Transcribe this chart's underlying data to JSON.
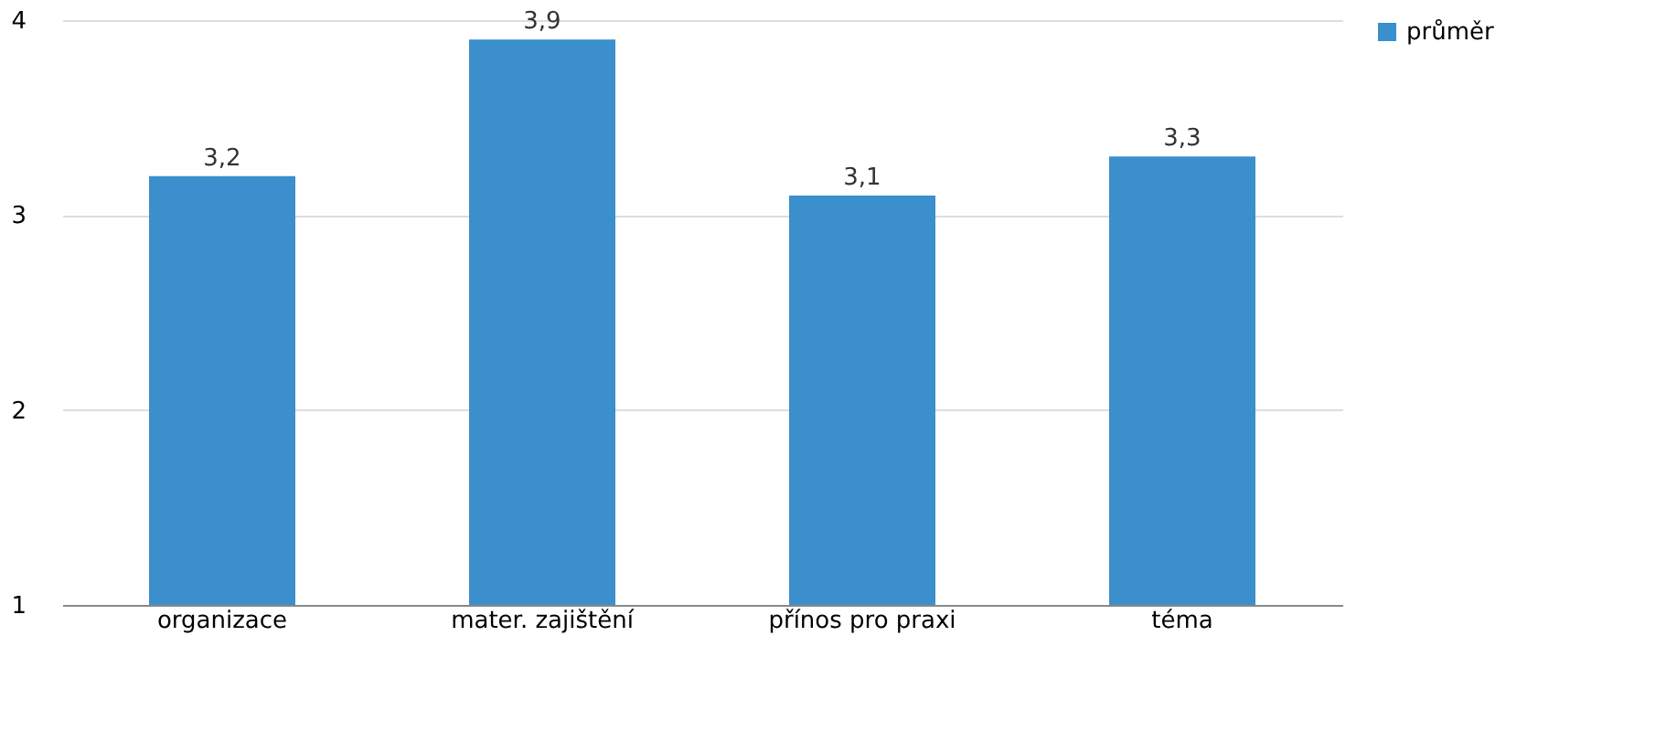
{
  "chart_data": {
    "type": "bar",
    "categories": [
      "organizace",
      "mater. zajištění",
      "přínos pro praxi",
      "téma"
    ],
    "series": [
      {
        "name": "průměr",
        "color": "#3a8fcc",
        "values": [
          3.2,
          3.9,
          3.1,
          3.3
        ],
        "value_labels": [
          "3,2",
          "3,9",
          "3,1",
          "3,3"
        ]
      }
    ],
    "ylim": [
      1,
      4
    ],
    "yticks": [
      1,
      2,
      3,
      4
    ],
    "grid": "y",
    "legend": "right"
  }
}
